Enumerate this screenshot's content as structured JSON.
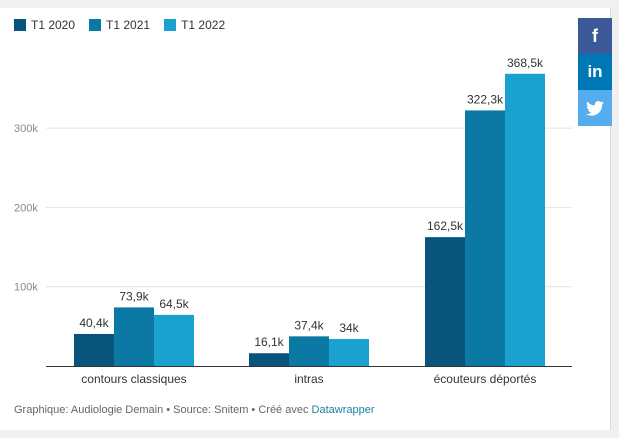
{
  "legend": [
    {
      "label": "T1 2020",
      "color": "#08547b"
    },
    {
      "label": "T1 2021",
      "color": "#0b79a3"
    },
    {
      "label": "T1 2022",
      "color": "#1aa1cf"
    }
  ],
  "share": {
    "facebook_glyph": "f",
    "linkedin_glyph": "in",
    "twitter_icon": "twitter-icon"
  },
  "footer": {
    "prefix": "Graphique: Audiologie Demain • Source: Snitem • Créé avec",
    "link": "Datawrapper"
  },
  "chart_data": {
    "type": "bar",
    "categories": [
      "contours classiques",
      "intras",
      "écouteurs déportés"
    ],
    "series": [
      {
        "name": "T1 2020",
        "values": [
          40.4,
          16.1,
          162.5
        ],
        "labels": [
          "40,4k",
          "16,1k",
          "162,5k"
        ],
        "color": "#08547b"
      },
      {
        "name": "T1 2021",
        "values": [
          73.9,
          37.4,
          322.3
        ],
        "labels": [
          "73,9k",
          "37,4k",
          "322,3k"
        ],
        "color": "#0b79a3"
      },
      {
        "name": "T1 2022",
        "values": [
          64.5,
          34.0,
          368.5
        ],
        "labels": [
          "64,5k",
          "34k",
          "368,5k"
        ],
        "color": "#1aa1cf"
      }
    ],
    "yticks": [
      100,
      200,
      300
    ],
    "ytick_labels": [
      "100k",
      "200k",
      "300k"
    ],
    "ylim": [
      0,
      400
    ],
    "unit": "k",
    "grid": true
  }
}
